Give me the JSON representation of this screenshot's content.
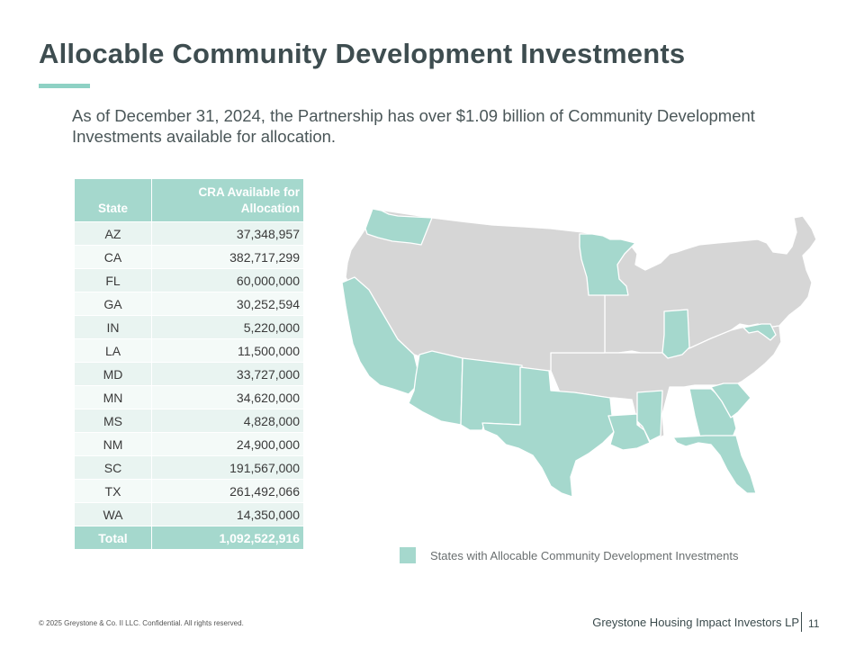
{
  "title": "Allocable Community Development Investments",
  "subtitle": "As of December 31, 2024, the Partnership has over $1.09 billion of Community Development Investments available for allocation.",
  "table": {
    "header_state": "State",
    "header_cra_line1": "CRA Available for",
    "header_cra_line2": "Allocation",
    "rows": [
      {
        "state": "AZ",
        "amount": "37,348,957"
      },
      {
        "state": "CA",
        "amount": "382,717,299"
      },
      {
        "state": "FL",
        "amount": "60,000,000"
      },
      {
        "state": "GA",
        "amount": "30,252,594"
      },
      {
        "state": "IN",
        "amount": "5,220,000"
      },
      {
        "state": "LA",
        "amount": "11,500,000"
      },
      {
        "state": "MD",
        "amount": "33,727,000"
      },
      {
        "state": "MN",
        "amount": "34,620,000"
      },
      {
        "state": "MS",
        "amount": "4,828,000"
      },
      {
        "state": "NM",
        "amount": "24,900,000"
      },
      {
        "state": "SC",
        "amount": "191,567,000"
      },
      {
        "state": "TX",
        "amount": "261,492,066"
      },
      {
        "state": "WA",
        "amount": "14,350,000"
      }
    ],
    "total_label": "Total",
    "total_amount": "1,092,522,916"
  },
  "map": {
    "highlight_color": "#a5d8cd",
    "base_color": "#d6d6d6",
    "highlighted_states": [
      "WA",
      "CA",
      "AZ",
      "NM",
      "TX",
      "LA",
      "MS",
      "GA",
      "FL",
      "SC",
      "MN",
      "IN",
      "MD"
    ]
  },
  "legend": {
    "label": "States with Allocable Community Development Investments"
  },
  "footer": {
    "copyright": "© 2025 Greystone & Co. II LLC. Confidential. All rights reserved.",
    "company": "Greystone Housing Impact Investors LP",
    "page_number": "11"
  },
  "colors": {
    "accent": "#8ed1c4",
    "title": "#3e4d50"
  }
}
